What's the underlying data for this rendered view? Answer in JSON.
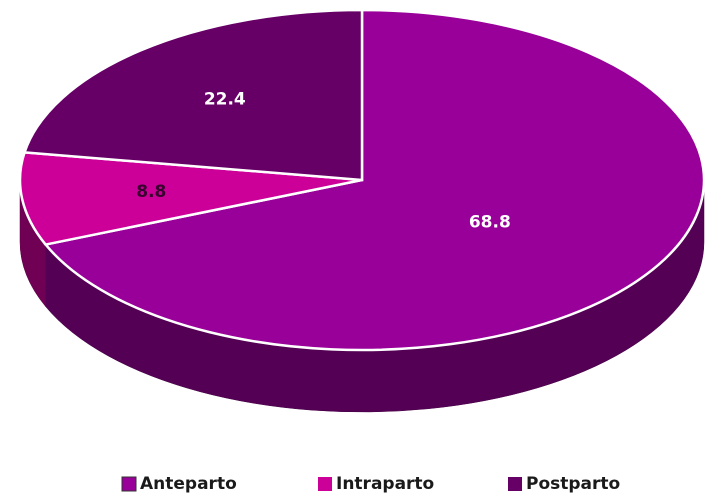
{
  "chart_data": {
    "type": "pie3d",
    "categories": [
      "Anteparto",
      "Intraparto",
      "Postparto"
    ],
    "values": [
      68.8,
      8.8,
      22.4
    ],
    "colors": [
      "#990099",
      "#cc0099",
      "#660066"
    ],
    "label_colors": [
      "#ffffff",
      "#3a0030",
      "#ffffff"
    ],
    "legend": "bottom"
  }
}
